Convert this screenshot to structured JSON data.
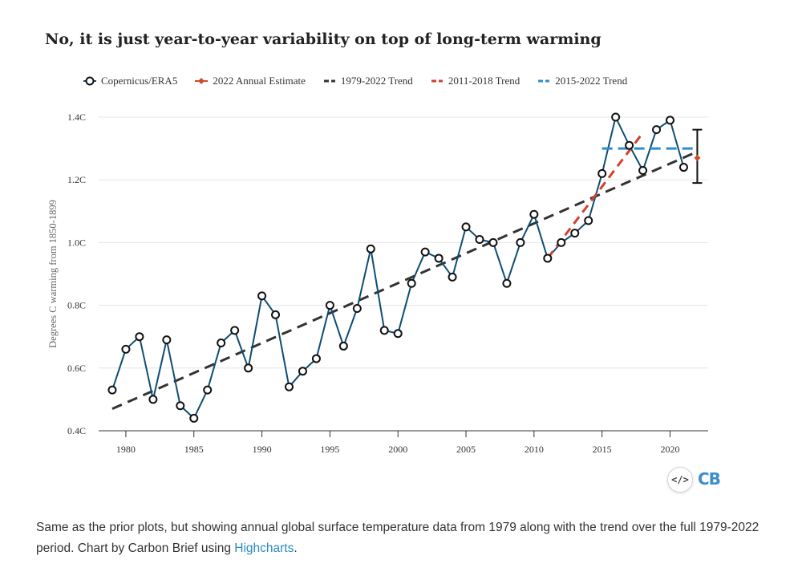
{
  "title": "No, it is just year-to-year variability on top of long-term warming",
  "legend": [
    {
      "label": "Copernicus/ERA5",
      "color": "#0e4d73",
      "marker": "circle"
    },
    {
      "label": "2022 Annual Estimate",
      "color": "#d04a2c",
      "marker": "diamond"
    },
    {
      "label": "1979-2022 Trend",
      "color": "#333333",
      "marker": "dash"
    },
    {
      "label": "2011-2018 Trend",
      "color": "#d43f2f",
      "marker": "dash"
    },
    {
      "label": "2015-2022 Trend",
      "color": "#2e8ccf",
      "marker": "dash"
    }
  ],
  "embed_icon": "</>",
  "logo": "CB",
  "caption": {
    "text": "Same as the prior plots, but showing annual global surface temperature data from 1979 along with the trend over the full 1979-2022 period. Chart by Carbon Brief using ",
    "link": "Highcharts",
    "end": "."
  },
  "chart_data": {
    "type": "line",
    "title": "No, it is just year-to-year variability on top of long-term warming",
    "xlabel": "",
    "ylabel": "Degrees C warming from 1850-1899",
    "xlim": [
      1978,
      2022.8
    ],
    "ylim": [
      0.4,
      1.4
    ],
    "xticks": [
      1980,
      1985,
      1990,
      1995,
      2000,
      2005,
      2010,
      2015,
      2020
    ],
    "xtick_labels": [
      "1980",
      "1985",
      "1990",
      "1995",
      "2000",
      "2005",
      "2010",
      "2015",
      "2020"
    ],
    "yticks": [
      0.4,
      0.6,
      0.8,
      1.0,
      1.2,
      1.4
    ],
    "ytick_labels": [
      "0.4C",
      "0.6C",
      "0.8C",
      "1.0C",
      "1.2C",
      "1.4C"
    ],
    "grid": true,
    "series": [
      {
        "name": "Copernicus/ERA5",
        "color": "#0e4d73",
        "x": [
          1979,
          1980,
          1981,
          1982,
          1983,
          1984,
          1985,
          1986,
          1987,
          1988,
          1989,
          1990,
          1991,
          1992,
          1993,
          1994,
          1995,
          1996,
          1997,
          1998,
          1999,
          2000,
          2001,
          2002,
          2003,
          2004,
          2005,
          2006,
          2007,
          2008,
          2009,
          2010,
          2011,
          2012,
          2013,
          2014,
          2015,
          2016,
          2017,
          2018,
          2019,
          2020,
          2021
        ],
        "values": [
          0.53,
          0.66,
          0.7,
          0.5,
          0.69,
          0.48,
          0.44,
          0.53,
          0.68,
          0.72,
          0.6,
          0.83,
          0.77,
          0.54,
          0.59,
          0.63,
          0.8,
          0.67,
          0.79,
          0.98,
          0.72,
          0.71,
          0.87,
          0.97,
          0.95,
          0.89,
          1.05,
          1.01,
          1.0,
          0.87,
          1.0,
          1.09,
          0.95,
          1.0,
          1.03,
          1.07,
          1.22,
          1.4,
          1.31,
          1.23,
          1.36,
          1.39,
          1.24
        ]
      },
      {
        "name": "2022 Annual Estimate",
        "color": "#d04a2c",
        "x": [
          2022
        ],
        "values": [
          1.27
        ],
        "error_range": [
          1.19,
          1.36
        ]
      },
      {
        "name": "1979-2022 Trend",
        "color": "#333333",
        "x": [
          1979,
          2022
        ],
        "values": [
          0.47,
          1.29
        ]
      },
      {
        "name": "2011-2018 Trend",
        "color": "#d43f2f",
        "x": [
          2011,
          2018
        ],
        "values": [
          0.95,
          1.35
        ]
      },
      {
        "name": "2015-2022 Trend",
        "color": "#2e8ccf",
        "x": [
          2015,
          2022
        ],
        "values": [
          1.3,
          1.3
        ]
      }
    ]
  }
}
